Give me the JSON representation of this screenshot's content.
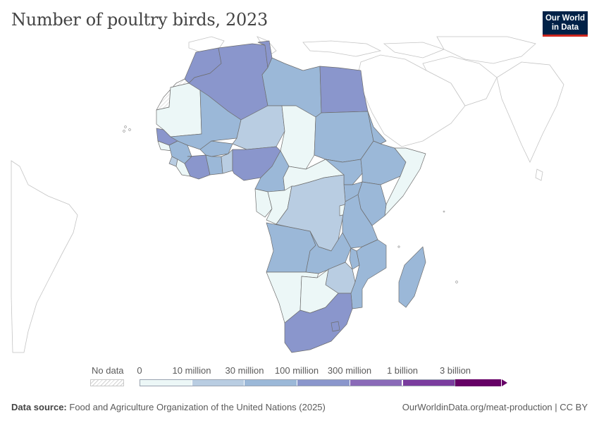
{
  "title": "Number of poultry birds, 2023",
  "logo": {
    "line1": "Our World",
    "line2": "in Data"
  },
  "legend": {
    "no_data_label": "No data",
    "ticks": [
      "0",
      "10 million",
      "30 million",
      "100 million",
      "300 million",
      "1 billion",
      "3 billion"
    ],
    "bin_colors": [
      "#ecf7f7",
      "#b9cde2",
      "#9bb8d8",
      "#8a96cc",
      "#8a6ab8",
      "#7a3c9e",
      "#660066"
    ]
  },
  "source": {
    "label": "Data source:",
    "text": "Food and Agriculture Organization of the United Nations (2025)"
  },
  "attribution": "OurWorldinData.org/meat-production | CC BY",
  "map_data": {
    "colors": {
      "bin_0_10m": "#ecf7f7",
      "bin_10_30m": "#b9cde2",
      "bin_30_100m": "#9bb8d8",
      "bin_100_300m": "#8a96cc",
      "no_data": "hatched",
      "outside": "#ffffff"
    },
    "regions": [
      {
        "name": "Morocco",
        "bin": "100-300 million"
      },
      {
        "name": "Algeria",
        "bin": "100-300 million"
      },
      {
        "name": "Tunisia",
        "bin": "100-300 million"
      },
      {
        "name": "Libya",
        "bin": "30-100 million"
      },
      {
        "name": "Egypt",
        "bin": "100-300 million"
      },
      {
        "name": "Western Sahara",
        "bin": "No data"
      },
      {
        "name": "Mauritania",
        "bin": "0-10 million"
      },
      {
        "name": "Mali",
        "bin": "30-100 million"
      },
      {
        "name": "Niger",
        "bin": "10-30 million"
      },
      {
        "name": "Chad",
        "bin": "0-10 million"
      },
      {
        "name": "Sudan",
        "bin": "30-100 million"
      },
      {
        "name": "Senegal",
        "bin": "100-300 million"
      },
      {
        "name": "Guinea",
        "bin": "30-100 million"
      },
      {
        "name": "Cote d'Ivoire",
        "bin": "100-300 million"
      },
      {
        "name": "Burkina Faso",
        "bin": "30-100 million"
      },
      {
        "name": "Ghana",
        "bin": "30-100 million"
      },
      {
        "name": "Nigeria",
        "bin": "100-300 million"
      },
      {
        "name": "Cameroon",
        "bin": "30-100 million"
      },
      {
        "name": "Central African Republic",
        "bin": "0-10 million"
      },
      {
        "name": "South Sudan",
        "bin": "30-100 million"
      },
      {
        "name": "Ethiopia",
        "bin": "30-100 million"
      },
      {
        "name": "Somalia",
        "bin": "0-10 million"
      },
      {
        "name": "Kenya",
        "bin": "30-100 million"
      },
      {
        "name": "Uganda",
        "bin": "30-100 million"
      },
      {
        "name": "Gabon",
        "bin": "0-10 million"
      },
      {
        "name": "Congo",
        "bin": "0-10 million"
      },
      {
        "name": "Democratic Republic of Congo",
        "bin": "10-30 million"
      },
      {
        "name": "Tanzania",
        "bin": "30-100 million"
      },
      {
        "name": "Angola",
        "bin": "30-100 million"
      },
      {
        "name": "Zambia",
        "bin": "30-100 million"
      },
      {
        "name": "Malawi",
        "bin": "30-100 million"
      },
      {
        "name": "Mozambique",
        "bin": "30-100 million"
      },
      {
        "name": "Zimbabwe",
        "bin": "10-30 million"
      },
      {
        "name": "Namibia",
        "bin": "0-10 million"
      },
      {
        "name": "Botswana",
        "bin": "0-10 million"
      },
      {
        "name": "South Africa",
        "bin": "100-300 million"
      },
      {
        "name": "Madagascar",
        "bin": "30-100 million"
      }
    ]
  }
}
